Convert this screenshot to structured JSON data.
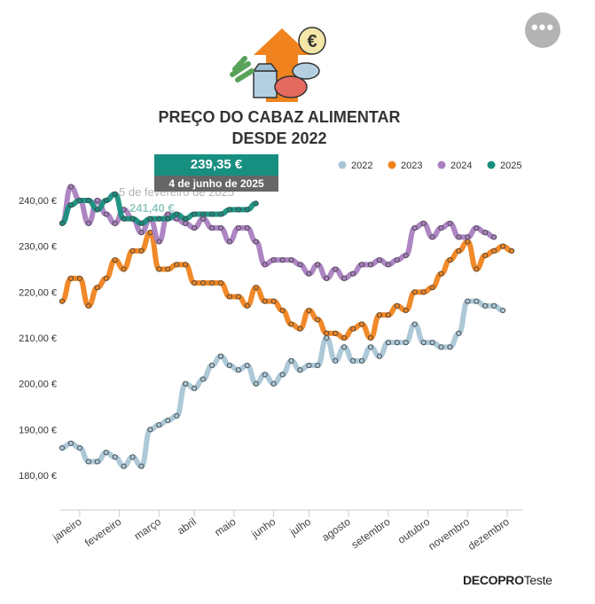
{
  "menu_button_label": "•••",
  "title_line1": "PREÇO DO CABAZ ALIMENTAR",
  "title_line2": "DESDE 2022",
  "brand": {
    "deco": "DECO",
    "pro": "PRO",
    "teste": "Teste"
  },
  "tooltip": {
    "value": "239,35 €",
    "date": "4 de junho de 2025"
  },
  "ghost_tooltip": {
    "date": "5 de fevereiro de 2025",
    "value": "241,40 €"
  },
  "colors": {
    "2022": "#a9c6d6",
    "2023": "#f0831e",
    "2024": "#a97fc0",
    "2025": "#178f80"
  },
  "chart_data": {
    "type": "line",
    "xlabel": "",
    "ylabel": "",
    "ylim": [
      175,
      245
    ],
    "xlim": [
      1,
      53
    ],
    "x_unit": "week of year",
    "yticks": [
      "180,00 €",
      "190,00 €",
      "200,00 €",
      "210,00 €",
      "220,00 €",
      "230,00 €",
      "240,00 €"
    ],
    "ytick_values": [
      180,
      190,
      200,
      210,
      220,
      230,
      240
    ],
    "xticks": [
      "janeiro",
      "fevereiro",
      "março",
      "abril",
      "maio",
      "junho",
      "julho",
      "agosto",
      "setembro",
      "outubro",
      "novembro",
      "dezembro"
    ],
    "xtick_weeks": [
      3,
      7.5,
      12,
      16,
      20.5,
      25,
      29,
      33.5,
      38,
      42.5,
      47,
      51.5
    ],
    "legend": [
      "2022",
      "2023",
      "2024",
      "2025"
    ],
    "legend_position": "top-right",
    "series": [
      {
        "name": "2022",
        "values": [
          186,
          187,
          186,
          183,
          183,
          185,
          184,
          182,
          184,
          182,
          190,
          191,
          192,
          193,
          200,
          199,
          201,
          204,
          206,
          204,
          203,
          204,
          200,
          202,
          200,
          202,
          205,
          203,
          204,
          204,
          210,
          205,
          208,
          205,
          205,
          208,
          206,
          209,
          209,
          209,
          213,
          209,
          209,
          208,
          208,
          211,
          218,
          218,
          217,
          217,
          216
        ]
      },
      {
        "name": "2023",
        "values": [
          218,
          223,
          223,
          217,
          221,
          223,
          227,
          225,
          229,
          229,
          233,
          225,
          225,
          226,
          226,
          222,
          222,
          222,
          222,
          219,
          219,
          217,
          221,
          218,
          218,
          216,
          213,
          212,
          216,
          214,
          211,
          211,
          210,
          212,
          213,
          210,
          215,
          215,
          217,
          216,
          220,
          220,
          221,
          224,
          227,
          229,
          231,
          225,
          228,
          229,
          230,
          229
        ]
      },
      {
        "name": "2024",
        "values": [
          235,
          243,
          240,
          235,
          240,
          237,
          235,
          238,
          236,
          233,
          236,
          231,
          237,
          236,
          235,
          234,
          236,
          234,
          234,
          231,
          234,
          234,
          231,
          226,
          227,
          227,
          227,
          226,
          224,
          226,
          223,
          225,
          223,
          224,
          226,
          226,
          227,
          226,
          227,
          228,
          234,
          235,
          232,
          234,
          235,
          232,
          232,
          234,
          233,
          232
        ]
      },
      {
        "name": "2025",
        "values": [
          235,
          239,
          240,
          240,
          238,
          240,
          241.4,
          236,
          236,
          235,
          236,
          236,
          236,
          237,
          236,
          237,
          237,
          237,
          237,
          238,
          238,
          238,
          239.35
        ]
      }
    ]
  }
}
